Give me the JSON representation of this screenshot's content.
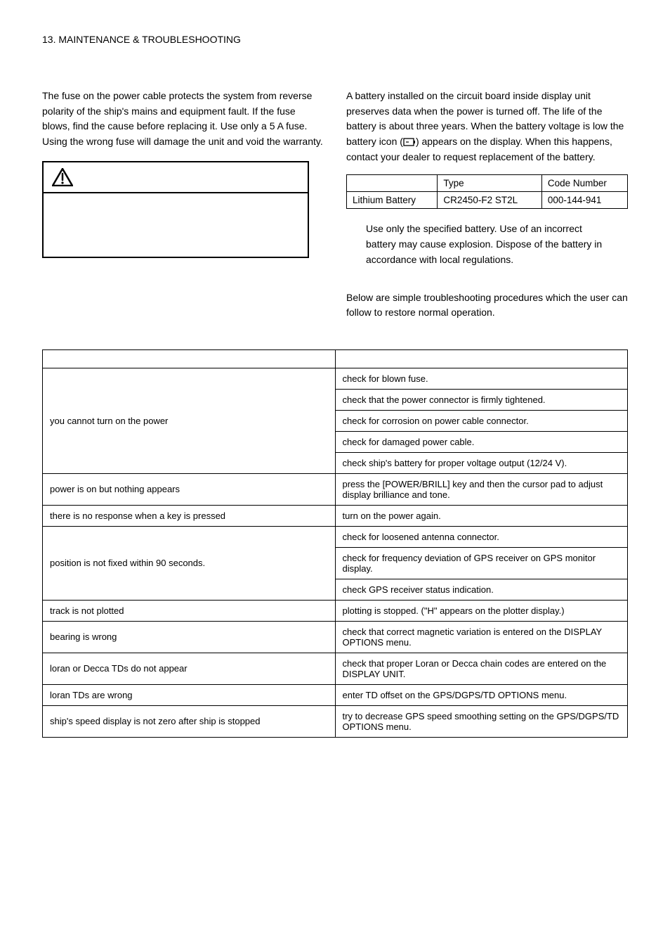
{
  "header": {
    "chapter": "13. MAINTENANCE & TROUBLESHOOTING"
  },
  "left_col": {
    "fuse_text": "The fuse on the power cable protects the system from reverse polarity of the ship's mains and equipment fault. If the fuse blows, find the cause before replacing it. Use only a 5 A fuse. Using the wrong fuse will damage the unit and void the warranty."
  },
  "right_col": {
    "battery_text_pre": "A battery installed on the circuit board inside display unit preserves data when the power is turned off. The life of the battery is about three years. When the battery voltage is low the battery icon (",
    "battery_text_post": ") appears on the display. When this happens, contact your dealer to request replacement of the battery.",
    "battery_table": {
      "h_type": "Type",
      "h_code": "Code Number",
      "name": "Lithium Battery",
      "type": "CR2450-F2 ST2L",
      "code": "000-144-941"
    },
    "warning_note_pre": " Use only the specified battery. Use of an incorrect battery may cause explosion. Dispose of the battery in accordance with local regulations.",
    "trouble_intro": "Below are simple troubleshooting procedures which the user can follow to restore normal operation."
  },
  "trouble_table": {
    "rows": [
      {
        "if": "you cannot turn on the power",
        "then": [
          "check for blown fuse.",
          "check that the power connector is firmly tightened.",
          "check for corrosion on power cable connector.",
          "check for damaged power cable.",
          "check ship's battery for proper voltage output (12/24 V)."
        ]
      },
      {
        "if": "power is on but nothing appears",
        "then": [
          "press the [POWER/BRILL] key and then the cursor pad to adjust display brilliance and tone."
        ]
      },
      {
        "if": "there is no response when a key is pressed",
        "then": [
          "turn on the power again."
        ]
      },
      {
        "if": "position is not fixed within 90 seconds.",
        "then": [
          "check for loosened antenna connector.",
          "check for frequency deviation of GPS receiver on GPS monitor display.",
          "check GPS receiver status indication."
        ]
      },
      {
        "if": "track is not plotted",
        "then": [
          "plotting is stopped. (\"H\" appears on the plotter display.)"
        ]
      },
      {
        "if": "bearing is wrong",
        "then": [
          "check that correct magnetic variation is entered on the DISPLAY OPTIONS menu."
        ]
      },
      {
        "if": "loran or Decca TDs do not appear",
        "then": [
          "check that proper Loran or Decca chain codes are entered on the DISPLAY UNIT."
        ]
      },
      {
        "if": "loran TDs are wrong",
        "then": [
          "enter TD offset on the GPS/DGPS/TD OPTIONS menu."
        ]
      },
      {
        "if": "ship's speed display is not zero after ship is stopped",
        "then": [
          "try to decrease GPS speed smoothing setting on the GPS/DGPS/TD OPTIONS menu."
        ]
      }
    ]
  }
}
